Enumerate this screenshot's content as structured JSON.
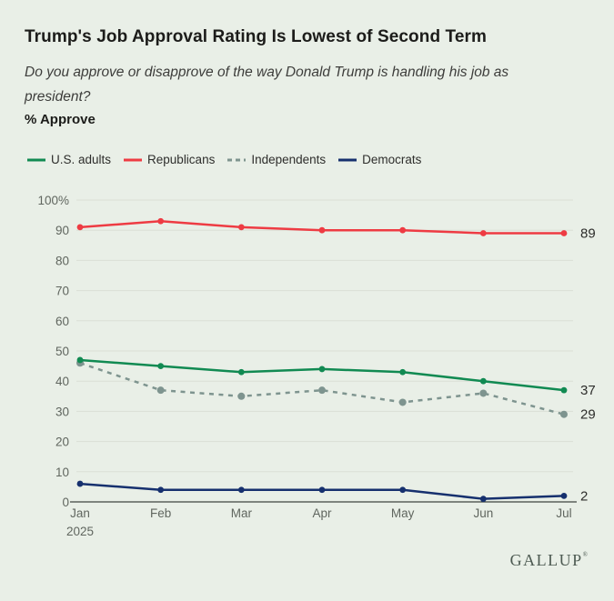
{
  "header": {
    "title": "Trump's Job Approval Rating Is Lowest of Second Term",
    "subtitle": "Do you approve or disapprove of the way Donald Trump is handling his job as president?",
    "measure_label": "% Approve"
  },
  "legend": [
    {
      "label": "U.S. adults",
      "color": "#118a52",
      "dashed": false
    },
    {
      "label": "Republicans",
      "color": "#ee3b43",
      "dashed": false
    },
    {
      "label": "Independents",
      "color": "#7e948f",
      "dashed": true
    },
    {
      "label": "Democrats",
      "color": "#16306e",
      "dashed": false
    }
  ],
  "chart_data": {
    "type": "line",
    "categories": [
      "Jan",
      "Feb",
      "Mar",
      "Apr",
      "May",
      "Jun",
      "Jul"
    ],
    "x_sub_label": "2025",
    "series": [
      {
        "name": "U.S. adults",
        "color": "#118a52",
        "style": "solid",
        "values": [
          47,
          45,
          43,
          44,
          43,
          40,
          37
        ],
        "end_label": "37"
      },
      {
        "name": "Republicans",
        "color": "#ee3b43",
        "style": "solid",
        "values": [
          91,
          93,
          91,
          90,
          90,
          89,
          89
        ],
        "end_label": "89"
      },
      {
        "name": "Independents",
        "color": "#7e948f",
        "style": "dashed",
        "values": [
          46,
          37,
          35,
          37,
          33,
          36,
          29
        ],
        "end_label": "29"
      },
      {
        "name": "Democrats",
        "color": "#16306e",
        "style": "solid",
        "values": [
          6,
          4,
          4,
          4,
          4,
          1,
          2
        ],
        "end_label": "2"
      }
    ],
    "ylim": [
      0,
      100
    ],
    "ytick_labels": [
      "0",
      "10",
      "20",
      "30",
      "40",
      "50",
      "60",
      "70",
      "80",
      "90",
      "100%"
    ],
    "grid": true,
    "legend_position": "top",
    "colors": {
      "background": "#e9efe7",
      "gridline": "#dadfd6",
      "axis_line": "#3e443f",
      "tick_text": "#60665f",
      "end_label_text": "#2d2d2b"
    }
  },
  "footer": {
    "brand": "GALLUP",
    "mark": "®"
  }
}
